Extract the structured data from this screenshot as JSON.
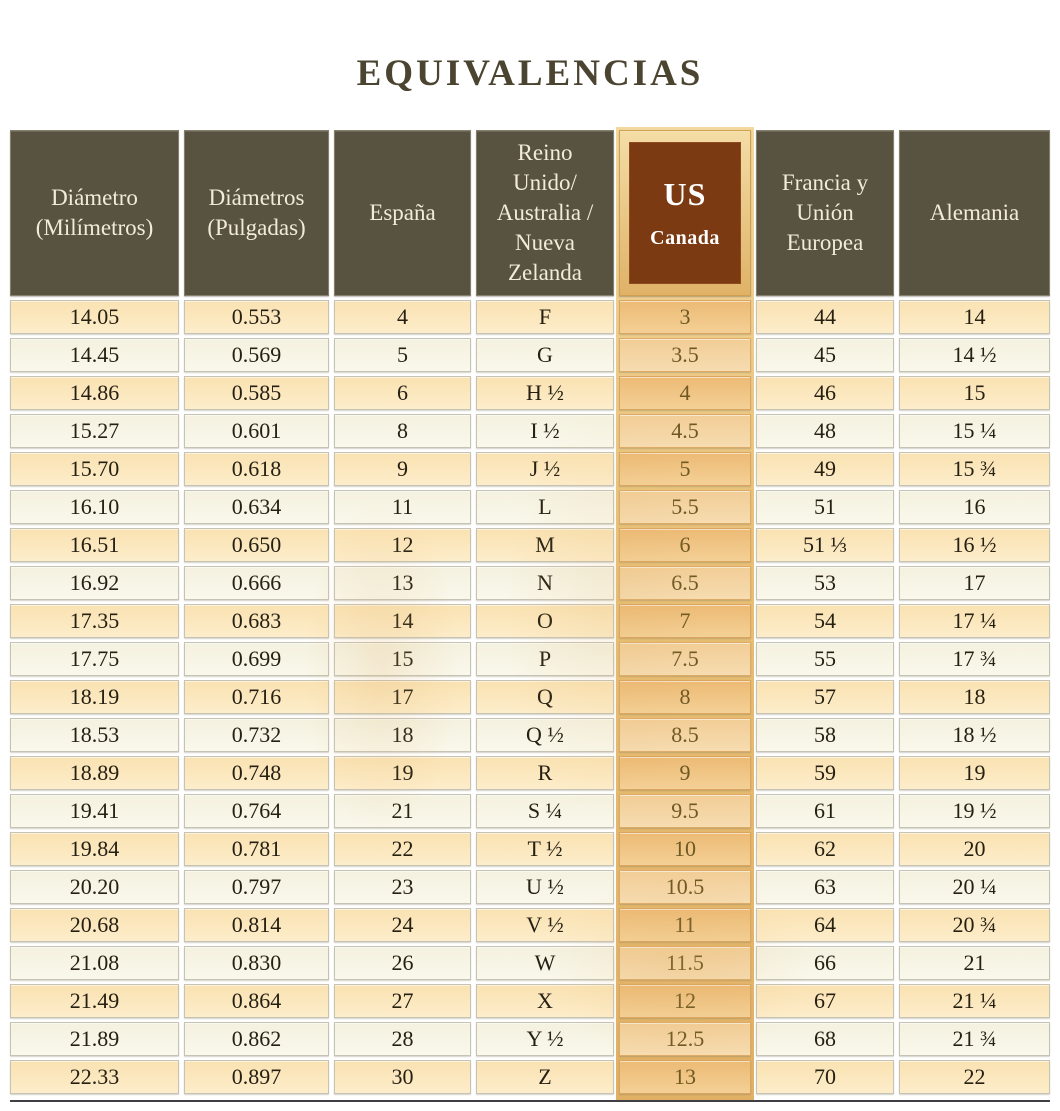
{
  "title": "EQUIVALENCIAS",
  "header_display": {
    "col0": "Diámetro\n(Milímetros)",
    "col1": "Diámetros\n(Pulgadas)",
    "col2": "España",
    "col3": "Reino\nUnido/\nAustralia /\nNueva\nZelanda",
    "col4_us": "US",
    "col4_canada": "Canada",
    "col5": "Francia y\nUnión\nEuropea",
    "col6": "Alemania"
  },
  "chart_data": {
    "type": "table",
    "title": "EQUIVALENCIAS",
    "columns": [
      "Diámetro (Milímetros)",
      "Diámetros (Pulgadas)",
      "España",
      "Reino Unido/ Australia / Nueva Zelanda",
      "US Canada",
      "Francia y Unión Europea",
      "Alemania"
    ],
    "highlighted_column": "US Canada",
    "rows": [
      [
        "14.05",
        "0.553",
        "4",
        "F",
        "3",
        "44",
        "14"
      ],
      [
        "14.45",
        "0.569",
        "5",
        "G",
        "3.5",
        "45",
        "14 ½"
      ],
      [
        "14.86",
        "0.585",
        "6",
        "H ½",
        "4",
        "46",
        "15"
      ],
      [
        "15.27",
        "0.601",
        "8",
        "I ½",
        "4.5",
        "48",
        "15 ¼"
      ],
      [
        "15.70",
        "0.618",
        "9",
        "J ½",
        "5",
        "49",
        "15 ¾"
      ],
      [
        "16.10",
        "0.634",
        "11",
        "L",
        "5.5",
        "51",
        "16"
      ],
      [
        "16.51",
        "0.650",
        "12",
        "M",
        "6",
        "51 ⅓",
        "16 ½"
      ],
      [
        "16.92",
        "0.666",
        "13",
        "N",
        "6.5",
        "53",
        "17"
      ],
      [
        "17.35",
        "0.683",
        "14",
        "O",
        "7",
        "54",
        "17 ¼"
      ],
      [
        "17.75",
        "0.699",
        "15",
        "P",
        "7.5",
        "55",
        "17 ¾"
      ],
      [
        "18.19",
        "0.716",
        "17",
        "Q",
        "8",
        "57",
        "18"
      ],
      [
        "18.53",
        "0.732",
        "18",
        "Q ½",
        "8.5",
        "58",
        "18 ½"
      ],
      [
        "18.89",
        "0.748",
        "19",
        "R",
        "9",
        "59",
        "19"
      ],
      [
        "19.41",
        "0.764",
        "21",
        "S ¼",
        "9.5",
        "61",
        "19 ½"
      ],
      [
        "19.84",
        "0.781",
        "22",
        "T ½",
        "10",
        "62",
        "20"
      ],
      [
        "20.20",
        "0.797",
        "23",
        "U ½",
        "10.5",
        "63",
        "20 ¼"
      ],
      [
        "20.68",
        "0.814",
        "24",
        "V ½",
        "11",
        "64",
        "20 ¾"
      ],
      [
        "21.08",
        "0.830",
        "26",
        "W",
        "11.5",
        "66",
        "21"
      ],
      [
        "21.49",
        "0.864",
        "27",
        "X",
        "12",
        "67",
        "21 ¼"
      ],
      [
        "21.89",
        "0.862",
        "28",
        "Y ½",
        "12.5",
        "68",
        "21 ¾"
      ],
      [
        "22.33",
        "0.897",
        "30",
        "Z",
        "13",
        "70",
        "22"
      ]
    ]
  },
  "colors": {
    "title_text": "#4a4430",
    "header_bg": "#585240",
    "header_text": "#f1ecd9",
    "us_frame_tan": "#e9c27a",
    "us_box_brown": "#7b3a12",
    "us_box_text": "#ffffff",
    "row_peach": "#fbe5ba",
    "row_cream": "#f6f3e3",
    "us_cell_peach": "#eec287",
    "us_cell_cream": "#f4d6a8",
    "cell_text": "#262013",
    "us_cell_text": "#6f5823",
    "bottom_rule": "#3f3f46"
  }
}
